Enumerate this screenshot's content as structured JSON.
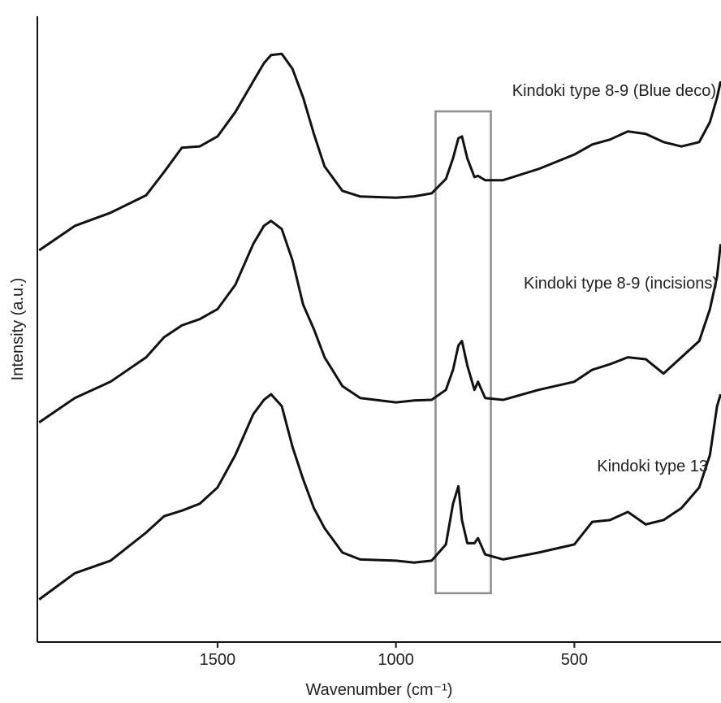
{
  "chart_data": {
    "type": "line",
    "xlabel": "Wavenumber (cm⁻¹)",
    "ylabel": "Intensity (a.u.)",
    "xlim": [
      2005,
      89
    ],
    "ylim": [
      0,
      100
    ],
    "xticks": [
      1500,
      1000,
      500
    ],
    "highlight": {
      "xrange": [
        889,
        734
      ],
      "yrange": [
        7.8,
        84.8
      ],
      "color": "#8c8c8c"
    },
    "x": [
      2000,
      1900,
      1800,
      1700,
      1650,
      1600,
      1550,
      1500,
      1450,
      1400,
      1370,
      1350,
      1320,
      1290,
      1260,
      1230,
      1200,
      1150,
      1100,
      1000,
      950,
      900,
      860,
      840,
      825,
      815,
      800,
      780,
      770,
      750,
      700,
      600,
      500,
      450,
      400,
      350,
      300,
      250,
      200,
      150,
      120,
      100,
      90
    ],
    "series": [
      {
        "name": "Kindoki type 8-9 (Blue deco)",
        "color": "#111111",
        "values": [
          62.6,
          66.5,
          68.6,
          71.4,
          75.1,
          79.0,
          79.2,
          80.8,
          84.7,
          89.6,
          92.5,
          93.8,
          94.0,
          91.6,
          87.0,
          81.2,
          76.0,
          72.1,
          71.2,
          71.0,
          71.2,
          71.7,
          74.0,
          77.3,
          80.5,
          80.8,
          77.3,
          74.3,
          74.5,
          73.8,
          73.8,
          75.6,
          77.9,
          79.5,
          80.3,
          81.6,
          81.2,
          79.9,
          79.2,
          79.9,
          83.1,
          87.0,
          89.6
        ]
      },
      {
        "name": "Kindoki type 8-9 (incisions)",
        "color": "#111111",
        "values": [
          35.1,
          39.0,
          41.6,
          45.5,
          48.7,
          50.6,
          51.6,
          53.2,
          57.1,
          63.6,
          66.5,
          67.3,
          66.0,
          61.0,
          53.9,
          50.0,
          45.5,
          40.9,
          39.0,
          38.3,
          38.6,
          38.7,
          40.3,
          43.5,
          47.4,
          48.1,
          44.2,
          40.3,
          41.6,
          39.0,
          38.7,
          40.3,
          41.6,
          43.5,
          44.4,
          45.5,
          45.2,
          42.9,
          45.5,
          48.1,
          53.2,
          58.4,
          63.6
        ]
      },
      {
        "name": "Kindoki type 13",
        "color": "#111111",
        "values": [
          6.8,
          11.0,
          13.0,
          17.5,
          20.1,
          21.0,
          22.1,
          24.7,
          29.9,
          36.4,
          38.7,
          39.6,
          37.7,
          31.2,
          26.0,
          21.4,
          18.2,
          14.3,
          13.2,
          13.0,
          12.7,
          13.0,
          15.6,
          22.1,
          24.9,
          19.5,
          15.8,
          15.8,
          16.6,
          14.0,
          13.2,
          14.3,
          15.6,
          19.2,
          19.5,
          20.8,
          18.8,
          19.5,
          21.4,
          24.7,
          29.9,
          37.7,
          39.6
        ]
      }
    ]
  }
}
